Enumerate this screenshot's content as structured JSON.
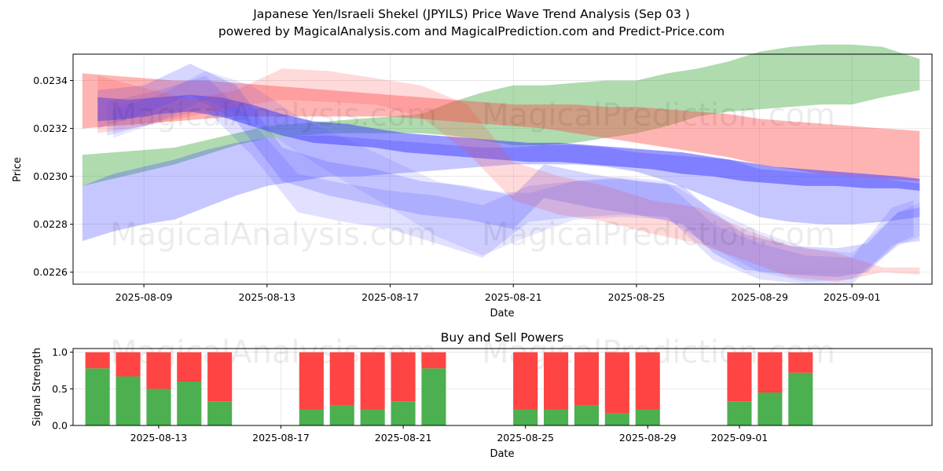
{
  "title": "Japanese Yen/Israeli Shekel (JPYILS) Price Wave Trend Analysis (Sep 03 )",
  "subtitle": "powered by MagicalAnalysis.com and MagicalPrediction.com and Predict-Price.com",
  "watermarks": [
    "MagicalAnalysis.com",
    "MagicalPrediction.com"
  ],
  "colors": {
    "green": "#2ca02c",
    "red": "#ff4444",
    "blue": "#4444ff",
    "buy": "#4caf50",
    "sell": "#ff4444",
    "grid": "#b0b0b0"
  },
  "chart_data": [
    {
      "type": "area",
      "name": "price-wave-trend",
      "xlabel": "Date",
      "ylabel": "Price",
      "x_start": "2025-08-07",
      "x_end": "2025-09-03",
      "xlim": [
        -0.3,
        27.6
      ],
      "ylim": [
        0.02255,
        0.02351
      ],
      "grid": true,
      "x_ticks": [
        {
          "day": 2,
          "label": "2025-08-09"
        },
        {
          "day": 6,
          "label": "2025-08-13"
        },
        {
          "day": 10,
          "label": "2025-08-17"
        },
        {
          "day": 14,
          "label": "2025-08-21"
        },
        {
          "day": 18,
          "label": "2025-08-25"
        },
        {
          "day": 22,
          "label": "2025-08-29"
        },
        {
          "day": 25,
          "label": "2025-09-01"
        }
      ],
      "y_ticks": [
        {
          "value": 0.0226,
          "label": "0.0226"
        },
        {
          "value": 0.0228,
          "label": "0.0228"
        },
        {
          "value": 0.023,
          "label": "0.0230"
        },
        {
          "value": 0.0232,
          "label": "0.0232"
        },
        {
          "value": 0.0234,
          "label": "0.0234"
        }
      ],
      "bands": [
        {
          "color": "green",
          "opacity": 0.38,
          "x": [
            0,
            1,
            2,
            3,
            4,
            5,
            6,
            7,
            8,
            9,
            10,
            11,
            12,
            13,
            14,
            15,
            16,
            17,
            18,
            19,
            20,
            21,
            22,
            23,
            24,
            25,
            26,
            27.2
          ],
          "upper": [
            0.02309,
            0.0231,
            0.02311,
            0.02312,
            0.02315,
            0.02318,
            0.02321,
            0.02322,
            0.02323,
            0.02324,
            0.02325,
            0.02326,
            0.02331,
            0.02335,
            0.02338,
            0.02338,
            0.02339,
            0.0234,
            0.0234,
            0.02343,
            0.02345,
            0.02348,
            0.02352,
            0.02354,
            0.02355,
            0.02355,
            0.02354,
            0.02349
          ],
          "lower": [
            0.02296,
            0.02299,
            0.02302,
            0.02305,
            0.02309,
            0.02313,
            0.02316,
            0.02317,
            0.02318,
            0.02318,
            0.02318,
            0.02318,
            0.02317,
            0.02315,
            0.02313,
            0.02313,
            0.02314,
            0.02316,
            0.02318,
            0.02321,
            0.02325,
            0.02327,
            0.02328,
            0.02329,
            0.0233,
            0.0233,
            0.02333,
            0.02336
          ]
        },
        {
          "color": "red",
          "opacity": 0.4,
          "x": [
            0,
            1,
            2,
            3,
            4,
            5,
            6,
            7,
            8,
            9,
            10,
            11,
            12,
            13,
            14,
            15,
            16,
            17,
            18,
            19,
            20,
            21,
            22,
            23,
            24,
            25,
            26,
            27.2
          ],
          "upper": [
            0.02343,
            0.02342,
            0.02341,
            0.0234,
            0.0234,
            0.02339,
            0.02338,
            0.02337,
            0.02336,
            0.02335,
            0.02334,
            0.02333,
            0.02332,
            0.02331,
            0.0233,
            0.0233,
            0.0233,
            0.02329,
            0.02329,
            0.02328,
            0.02327,
            0.02326,
            0.02324,
            0.02323,
            0.02322,
            0.02321,
            0.0232,
            0.02319
          ],
          "lower": [
            0.0232,
            0.02321,
            0.02322,
            0.02323,
            0.02324,
            0.02325,
            0.02325,
            0.02325,
            0.02325,
            0.02325,
            0.02325,
            0.02324,
            0.02323,
            0.02322,
            0.02321,
            0.0232,
            0.02318,
            0.02316,
            0.02314,
            0.02312,
            0.0231,
            0.02308,
            0.02305,
            0.02303,
            0.02301,
            0.023,
            0.02299,
            0.02298
          ]
        },
        {
          "color": "blue",
          "opacity": 0.3,
          "x": [
            0,
            1,
            2,
            3,
            4,
            5,
            6,
            7,
            8,
            9,
            10,
            11,
            12,
            13,
            14,
            15,
            16,
            17,
            18,
            19,
            20,
            21,
            22,
            23,
            24,
            25,
            26,
            27.2
          ],
          "upper": [
            0.02296,
            0.02301,
            0.02304,
            0.02307,
            0.02311,
            0.02314,
            0.02316,
            0.02317,
            0.02317,
            0.02316,
            0.02315,
            0.02314,
            0.02313,
            0.02312,
            0.02312,
            0.02313,
            0.02313,
            0.02312,
            0.0231,
            0.02309,
            0.02308,
            0.02307,
            0.02303,
            0.02302,
            0.02301,
            0.023,
            0.02299,
            0.02297
          ],
          "lower": [
            0.02273,
            0.02277,
            0.0228,
            0.02282,
            0.02287,
            0.02292,
            0.02296,
            0.02298,
            0.023,
            0.023,
            0.02301,
            0.02302,
            0.02303,
            0.02304,
            0.02305,
            0.02305,
            0.02305,
            0.02304,
            0.02302,
            0.02298,
            0.02293,
            0.02288,
            0.02283,
            0.02281,
            0.0228,
            0.0228,
            0.02281,
            0.02283
          ]
        },
        {
          "color": "blue",
          "opacity": 0.55,
          "x": [
            0.5,
            1.5,
            2.5,
            3.5,
            4.5,
            5.5,
            6.5,
            7.5,
            8.5,
            9.5,
            10.5,
            11.5,
            12.5,
            13.5,
            14.5,
            15.5,
            16.5,
            17.5,
            18.5,
            19.5,
            20.5,
            21.5,
            22.5,
            23.5,
            24.5,
            25.5,
            26.5,
            27.2
          ],
          "upper": [
            0.02333,
            0.02332,
            0.02333,
            0.02334,
            0.02333,
            0.0233,
            0.02326,
            0.02323,
            0.02322,
            0.0232,
            0.02318,
            0.02317,
            0.02316,
            0.02315,
            0.02314,
            0.02314,
            0.02313,
            0.02312,
            0.02311,
            0.0231,
            0.02308,
            0.02306,
            0.02304,
            0.02303,
            0.02302,
            0.02301,
            0.023,
            0.02299
          ],
          "lower": [
            0.02323,
            0.02324,
            0.02326,
            0.02327,
            0.02325,
            0.02321,
            0.02317,
            0.02314,
            0.02313,
            0.02312,
            0.0231,
            0.02309,
            0.02308,
            0.02307,
            0.02306,
            0.02306,
            0.02305,
            0.02304,
            0.02303,
            0.02301,
            0.023,
            0.02298,
            0.02297,
            0.02296,
            0.02296,
            0.02295,
            0.02295,
            0.02294
          ]
        },
        {
          "color": "blue",
          "opacity": 0.22,
          "x": [
            0.5,
            2,
            3.5,
            5,
            6.5,
            8,
            9.5,
            11,
            12.5,
            14,
            15,
            16.5,
            18,
            19.5,
            20.5,
            21.5,
            23,
            24.5,
            25.5,
            26.5,
            27.2
          ],
          "upper": [
            0.02336,
            0.02338,
            0.02347,
            0.02338,
            0.02312,
            0.02306,
            0.02303,
            0.02298,
            0.02296,
            0.02292,
            0.02305,
            0.02301,
            0.02298,
            0.02296,
            0.02285,
            0.02276,
            0.02271,
            0.0227,
            0.02272,
            0.02285,
            0.02287
          ],
          "lower": [
            0.0232,
            0.02326,
            0.02334,
            0.02323,
            0.02298,
            0.02292,
            0.02288,
            0.02284,
            0.02282,
            0.02278,
            0.02291,
            0.02287,
            0.02284,
            0.0228,
            0.02268,
            0.02261,
            0.02259,
            0.02258,
            0.0226,
            0.02272,
            0.02273
          ]
        },
        {
          "color": "blue",
          "opacity": 0.16,
          "x": [
            0.8,
            2.5,
            4,
            5.5,
            7,
            8.5,
            10,
            11.5,
            13,
            14.5,
            16,
            17.5,
            19,
            20.5,
            22,
            23.5,
            25,
            26.3,
            27
          ],
          "upper": [
            0.02331,
            0.02336,
            0.02342,
            0.02323,
            0.02301,
            0.02297,
            0.02294,
            0.02292,
            0.02288,
            0.02296,
            0.02298,
            0.02299,
            0.02297,
            0.0228,
            0.02272,
            0.02267,
            0.02266,
            0.02287,
            0.0229
          ],
          "lower": [
            0.02317,
            0.02323,
            0.02328,
            0.02309,
            0.02285,
            0.02281,
            0.02278,
            0.02272,
            0.02266,
            0.02281,
            0.02283,
            0.02284,
            0.02283,
            0.02265,
            0.02257,
            0.02255,
            0.02255,
            0.02271,
            0.02275
          ]
        },
        {
          "color": "red",
          "opacity": 0.2,
          "x": [
            0.5,
            2,
            3.5,
            5,
            6.5,
            8,
            9.5,
            11,
            12.5,
            14,
            15.5,
            17,
            18.5,
            20,
            21.5,
            23,
            24.5,
            26,
            27.2
          ],
          "upper": [
            0.02342,
            0.02337,
            0.02332,
            0.02336,
            0.02345,
            0.02344,
            0.02341,
            0.02338,
            0.0233,
            0.02306,
            0.023,
            0.02296,
            0.0229,
            0.02287,
            0.02278,
            0.02271,
            0.02268,
            0.02262,
            0.02262
          ],
          "lower": [
            0.02318,
            0.02321,
            0.02325,
            0.02329,
            0.02332,
            0.02331,
            0.0233,
            0.02325,
            0.0231,
            0.0229,
            0.02284,
            0.02281,
            0.02276,
            0.02272,
            0.02265,
            0.02258,
            0.02256,
            0.0226,
            0.02259
          ]
        },
        {
          "color": "blue",
          "opacity": 0.13,
          "x": [
            1,
            2.5,
            4,
            5.5,
            7,
            8.5,
            10,
            11.5,
            13,
            14.5,
            16,
            17.5,
            19,
            20.5,
            22,
            23.5,
            25,
            26.5,
            27.2
          ],
          "upper": [
            0.02328,
            0.02334,
            0.02344,
            0.02338,
            0.02325,
            0.02316,
            0.02307,
            0.02298,
            0.02294,
            0.02293,
            0.02298,
            0.023,
            0.02298,
            0.02286,
            0.02277,
            0.0227,
            0.02268,
            0.02285,
            0.02289
          ],
          "lower": [
            0.02316,
            0.02323,
            0.02332,
            0.02323,
            0.0231,
            0.02298,
            0.02287,
            0.02275,
            0.02267,
            0.02275,
            0.02282,
            0.02283,
            0.02282,
            0.0227,
            0.0226,
            0.02256,
            0.02257,
            0.02271,
            0.02275
          ]
        }
      ]
    },
    {
      "type": "bar",
      "stacked": true,
      "name": "buy-sell-powers",
      "title": "Buy and Sell Powers",
      "xlabel": "Date",
      "ylabel": "Signal Strength",
      "ylim": [
        0,
        1.05
      ],
      "xlim": [
        -0.8,
        27.3
      ],
      "x_start": "2025-08-11",
      "x_ticks": [
        {
          "day": 2,
          "label": "2025-08-13"
        },
        {
          "day": 6,
          "label": "2025-08-17"
        },
        {
          "day": 10,
          "label": "2025-08-21"
        },
        {
          "day": 14,
          "label": "2025-08-25"
        },
        {
          "day": 18,
          "label": "2025-08-29"
        },
        {
          "day": 21,
          "label": "2025-09-01"
        }
      ],
      "y_ticks": [
        {
          "value": 0,
          "label": "0.0"
        },
        {
          "value": 0.5,
          "label": "0.5"
        },
        {
          "value": 1,
          "label": "1.0"
        }
      ],
      "series": [
        {
          "name": "Buy",
          "color": "buy",
          "days": [
            0,
            1,
            2,
            3,
            4,
            7,
            8,
            9,
            10,
            11,
            14,
            15,
            16,
            17,
            18,
            21,
            22,
            23
          ],
          "values": [
            0.78,
            0.67,
            0.5,
            0.6,
            0.33,
            0.22,
            0.27,
            0.22,
            0.33,
            0.78,
            0.22,
            0.22,
            0.27,
            0.17,
            0.22,
            0.33,
            0.45,
            0.72
          ]
        },
        {
          "name": "Sell",
          "color": "sell",
          "days": [
            0,
            1,
            2,
            3,
            4,
            7,
            8,
            9,
            10,
            11,
            14,
            15,
            16,
            17,
            18,
            21,
            22,
            23
          ],
          "values": [
            0.22,
            0.33,
            0.5,
            0.4,
            0.67,
            0.78,
            0.73,
            0.78,
            0.67,
            0.22,
            0.78,
            0.78,
            0.73,
            0.83,
            0.78,
            0.67,
            0.55,
            0.28
          ]
        }
      ]
    }
  ]
}
